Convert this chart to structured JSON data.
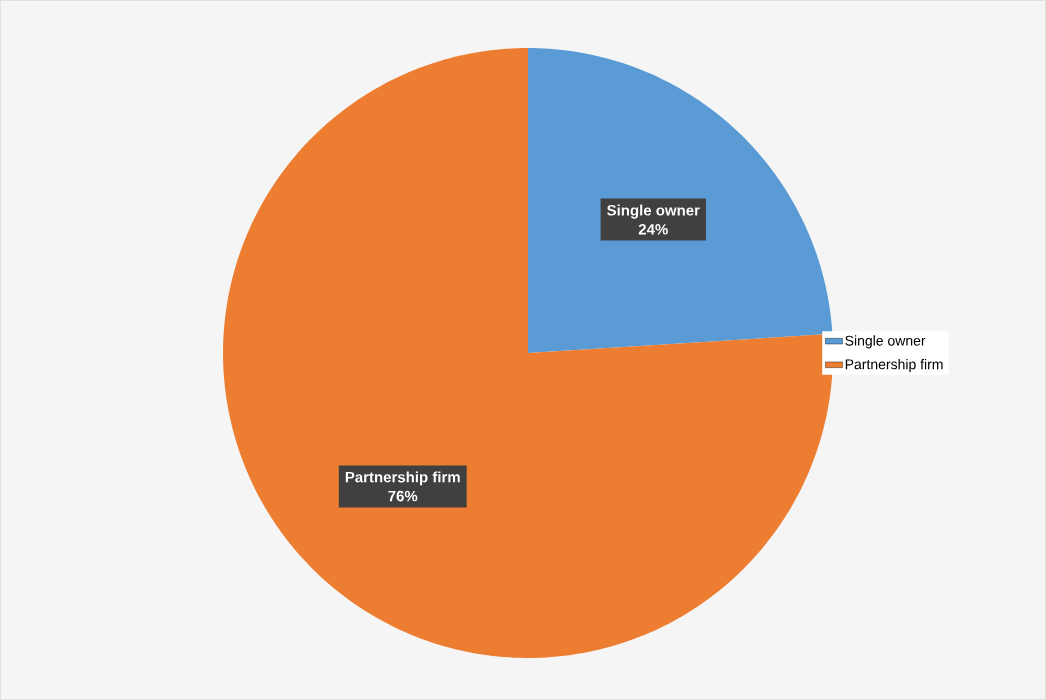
{
  "chart_data": {
    "type": "pie",
    "categories": [
      "Single owner",
      "Partnership firm"
    ],
    "values": [
      24,
      76
    ],
    "colors": [
      "#5b9bd5",
      "#ed7d31"
    ],
    "value_labels": [
      "24%",
      "76%"
    ],
    "legend": "right"
  }
}
